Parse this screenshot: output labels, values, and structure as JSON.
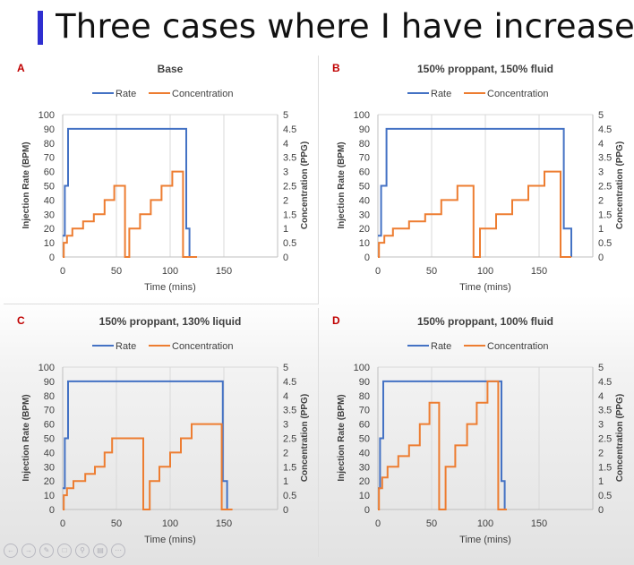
{
  "slide": {
    "title": "Three cases where I have increased prop"
  },
  "colors": {
    "rate": "#4472C4",
    "concentration": "#ED7D31",
    "panel_letter": "#C00000"
  },
  "toolbar_icons": [
    "back-icon",
    "forward-icon",
    "pen-icon",
    "copy-icon",
    "zoom-icon",
    "subtitles-icon",
    "more-icon"
  ],
  "chart_data": [
    {
      "type": "line",
      "letter": "A",
      "title": "Base",
      "legend": [
        "Rate",
        "Concentration"
      ],
      "legend_position": "top",
      "xlabel": "Time (mins)",
      "ylabel": "Injection Rate (BPM)",
      "y2label": "Concentration (PPG)",
      "xlim": [
        0,
        200
      ],
      "xticks": [
        "0",
        "50",
        "100",
        "150"
      ],
      "ylim": [
        0,
        100
      ],
      "yticks": [
        "0",
        "10",
        "20",
        "30",
        "40",
        "50",
        "60",
        "70",
        "80",
        "90",
        "100"
      ],
      "y2lim": [
        0,
        5
      ],
      "y2ticks": [
        "0",
        "0.5",
        "1",
        "1.5",
        "2",
        "2.5",
        "3",
        "3.5",
        "4",
        "4.5",
        "5"
      ],
      "series": [
        {
          "name": "Rate",
          "axis": "left",
          "points": [
            [
              0,
              15
            ],
            [
              2,
              15
            ],
            [
              2,
              50
            ],
            [
              5,
              50
            ],
            [
              5,
              90
            ],
            [
              115,
              90
            ],
            [
              115,
              20
            ],
            [
              118,
              20
            ],
            [
              118,
              0
            ]
          ]
        },
        {
          "name": "Concentration",
          "axis": "right",
          "points": [
            [
              0,
              0
            ],
            [
              1,
              0
            ],
            [
              1,
              0.5
            ],
            [
              4,
              0.5
            ],
            [
              4,
              0.75
            ],
            [
              9,
              0.75
            ],
            [
              9,
              1
            ],
            [
              19,
              1
            ],
            [
              19,
              1.25
            ],
            [
              29,
              1.25
            ],
            [
              29,
              1.5
            ],
            [
              39,
              1.5
            ],
            [
              39,
              2
            ],
            [
              48,
              2
            ],
            [
              48,
              2.5
            ],
            [
              58,
              2.5
            ],
            [
              58,
              0
            ],
            [
              62,
              0
            ],
            [
              62,
              1
            ],
            [
              72,
              1
            ],
            [
              72,
              1.5
            ],
            [
              82,
              1.5
            ],
            [
              82,
              2
            ],
            [
              92,
              2
            ],
            [
              92,
              2.5
            ],
            [
              102,
              2.5
            ],
            [
              102,
              3
            ],
            [
              112,
              3
            ],
            [
              112,
              0
            ],
            [
              125,
              0
            ]
          ]
        }
      ]
    },
    {
      "type": "line",
      "letter": "B",
      "title": "150% proppant, 150% fluid",
      "legend": [
        "Rate",
        "Concentration"
      ],
      "legend_position": "top",
      "xlabel": "Time (mins)",
      "ylabel": "Injection Rate (BPM)",
      "y2label": "Concentration (PPG)",
      "xlim": [
        0,
        200
      ],
      "xticks": [
        "0",
        "50",
        "100",
        "150"
      ],
      "ylim": [
        0,
        100
      ],
      "yticks": [
        "0",
        "10",
        "20",
        "30",
        "40",
        "50",
        "60",
        "70",
        "80",
        "90",
        "100"
      ],
      "y2lim": [
        0,
        5
      ],
      "y2ticks": [
        "0",
        "0.5",
        "1",
        "1.5",
        "2",
        "2.5",
        "3",
        "3.5",
        "4",
        "4.5",
        "5"
      ],
      "series": [
        {
          "name": "Rate",
          "axis": "left",
          "points": [
            [
              0,
              15
            ],
            [
              3,
              15
            ],
            [
              3,
              50
            ],
            [
              8,
              50
            ],
            [
              8,
              90
            ],
            [
              173,
              90
            ],
            [
              173,
              20
            ],
            [
              180,
              20
            ],
            [
              180,
              0
            ]
          ]
        },
        {
          "name": "Concentration",
          "axis": "right",
          "points": [
            [
              0,
              0
            ],
            [
              1,
              0
            ],
            [
              1,
              0.5
            ],
            [
              6,
              0.5
            ],
            [
              6,
              0.75
            ],
            [
              14,
              0.75
            ],
            [
              14,
              1
            ],
            [
              29,
              1
            ],
            [
              29,
              1.25
            ],
            [
              44,
              1.25
            ],
            [
              44,
              1.5
            ],
            [
              59,
              1.5
            ],
            [
              59,
              2
            ],
            [
              74,
              2
            ],
            [
              74,
              2.5
            ],
            [
              89,
              2.5
            ],
            [
              89,
              0
            ],
            [
              95,
              0
            ],
            [
              95,
              1
            ],
            [
              110,
              1
            ],
            [
              110,
              1.5
            ],
            [
              125,
              1.5
            ],
            [
              125,
              2
            ],
            [
              140,
              2
            ],
            [
              140,
              2.5
            ],
            [
              155,
              2.5
            ],
            [
              155,
              3
            ],
            [
              170,
              3
            ],
            [
              170,
              0
            ],
            [
              180,
              0
            ]
          ]
        }
      ]
    },
    {
      "type": "line",
      "letter": "C",
      "title": "150% proppant, 130% liquid",
      "legend": [
        "Rate",
        "Concentration"
      ],
      "legend_position": "top",
      "xlabel": "Time (mins)",
      "ylabel": "Injection Rate (BPM)",
      "y2label": "Concentration (PPG)",
      "xlim": [
        0,
        200
      ],
      "xticks": [
        "0",
        "50",
        "100",
        "150"
      ],
      "ylim": [
        0,
        100
      ],
      "yticks": [
        "0",
        "10",
        "20",
        "30",
        "40",
        "50",
        "60",
        "70",
        "80",
        "90",
        "100"
      ],
      "y2lim": [
        0,
        5
      ],
      "y2ticks": [
        "0",
        "0.5",
        "1",
        "1.5",
        "2",
        "2.5",
        "3",
        "3.5",
        "4",
        "4.5",
        "5"
      ],
      "series": [
        {
          "name": "Rate",
          "axis": "left",
          "points": [
            [
              0,
              15
            ],
            [
              2,
              15
            ],
            [
              2,
              50
            ],
            [
              5,
              50
            ],
            [
              5,
              90
            ],
            [
              149,
              90
            ],
            [
              149,
              20
            ],
            [
              153,
              20
            ],
            [
              153,
              0
            ]
          ]
        },
        {
          "name": "Concentration",
          "axis": "right",
          "points": [
            [
              0,
              0
            ],
            [
              1,
              0
            ],
            [
              1,
              0.5
            ],
            [
              4,
              0.5
            ],
            [
              4,
              0.75
            ],
            [
              10,
              0.75
            ],
            [
              10,
              1
            ],
            [
              21,
              1
            ],
            [
              21,
              1.25
            ],
            [
              30,
              1.25
            ],
            [
              30,
              1.5
            ],
            [
              39,
              1.5
            ],
            [
              39,
              2
            ],
            [
              46,
              2
            ],
            [
              46,
              2.5
            ],
            [
              75,
              2.5
            ],
            [
              75,
              0
            ],
            [
              81,
              0
            ],
            [
              81,
              1
            ],
            [
              90,
              1
            ],
            [
              90,
              1.5
            ],
            [
              100,
              1.5
            ],
            [
              100,
              2
            ],
            [
              110,
              2
            ],
            [
              110,
              2.5
            ],
            [
              120,
              2.5
            ],
            [
              120,
              3
            ],
            [
              148,
              3
            ],
            [
              148,
              0
            ],
            [
              158,
              0
            ]
          ]
        }
      ]
    },
    {
      "type": "line",
      "letter": "D",
      "title": "150% proppant, 100% fluid",
      "legend": [
        "Rate",
        "Concentration"
      ],
      "legend_position": "top",
      "xlabel": "Time (mins)",
      "ylabel": "Injection Rate (BPM)",
      "y2label": "Concentration (PPG)",
      "xlim": [
        0,
        200
      ],
      "xticks": [
        "0",
        "50",
        "100",
        "150"
      ],
      "ylim": [
        0,
        100
      ],
      "yticks": [
        "0",
        "10",
        "20",
        "30",
        "40",
        "50",
        "60",
        "70",
        "80",
        "90",
        "100"
      ],
      "y2lim": [
        0,
        5
      ],
      "y2ticks": [
        "0",
        "0.5",
        "1",
        "1.5",
        "2",
        "2.5",
        "3",
        "3.5",
        "4",
        "4.5",
        "5"
      ],
      "series": [
        {
          "name": "Rate",
          "axis": "left",
          "points": [
            [
              0,
              15
            ],
            [
              2,
              15
            ],
            [
              2,
              50
            ],
            [
              5,
              50
            ],
            [
              5,
              90
            ],
            [
              115,
              90
            ],
            [
              115,
              20
            ],
            [
              118,
              20
            ],
            [
              118,
              0
            ]
          ]
        },
        {
          "name": "Concentration",
          "axis": "right",
          "points": [
            [
              0,
              0
            ],
            [
              1,
              0
            ],
            [
              1,
              0.75
            ],
            [
              4,
              0.75
            ],
            [
              4,
              1.125
            ],
            [
              9,
              1.125
            ],
            [
              9,
              1.5
            ],
            [
              19,
              1.5
            ],
            [
              19,
              1.875
            ],
            [
              29,
              1.875
            ],
            [
              29,
              2.25
            ],
            [
              39,
              2.25
            ],
            [
              39,
              3
            ],
            [
              48,
              3
            ],
            [
              48,
              3.75
            ],
            [
              57,
              3.75
            ],
            [
              57,
              0
            ],
            [
              63,
              0
            ],
            [
              63,
              1.5
            ],
            [
              72,
              1.5
            ],
            [
              72,
              2.25
            ],
            [
              83,
              2.25
            ],
            [
              83,
              3
            ],
            [
              92,
              3
            ],
            [
              92,
              3.75
            ],
            [
              102,
              3.75
            ],
            [
              102,
              4.5
            ],
            [
              112,
              4.5
            ],
            [
              112,
              0
            ],
            [
              120,
              0
            ]
          ]
        }
      ]
    }
  ]
}
